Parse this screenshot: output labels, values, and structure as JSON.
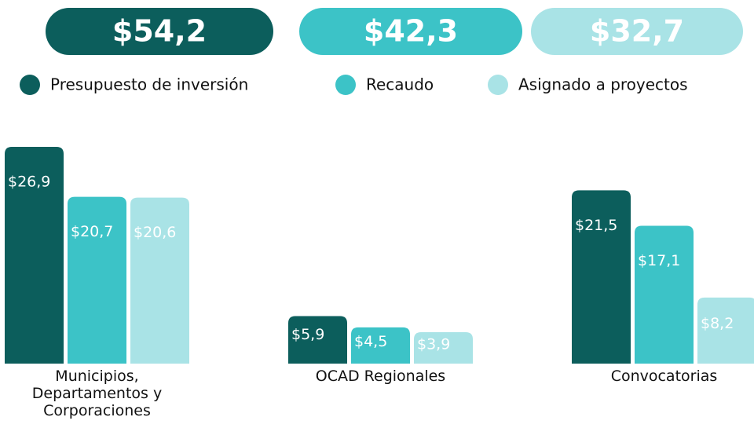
{
  "chart_data": {
    "type": "bar",
    "categories": [
      "Municipios, Departamentos y Corporaciones",
      "OCAD Regionales",
      "Convocatorias"
    ],
    "series": [
      {
        "name": "Presupuesto de inversión",
        "color": "#0c5e5c",
        "total": 54.2,
        "total_label": "$54,2",
        "values": [
          26.9,
          5.9,
          21.5
        ],
        "value_labels": [
          "$26,9",
          "$5,9",
          "$21,5"
        ]
      },
      {
        "name": "Recaudo",
        "color": "#3cc3c7",
        "total": 42.3,
        "total_label": "$42,3",
        "values": [
          20.7,
          4.5,
          17.1
        ],
        "value_labels": [
          "$20,7",
          "$4,5",
          "$17,1"
        ]
      },
      {
        "name": "Asignado a proyectos",
        "color": "#a9e3e6",
        "total": 32.7,
        "total_label": "$32,7",
        "values": [
          20.6,
          3.9,
          8.2
        ],
        "value_labels": [
          "$20,6",
          "$3,9",
          "$8,2"
        ]
      }
    ]
  }
}
